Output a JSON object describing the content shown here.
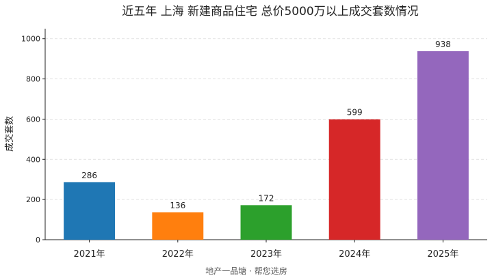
{
  "chart_data": {
    "type": "bar",
    "title": "近五年 上海 新建商品住宅 总价5000万以上成交套数情况",
    "xlabel": "",
    "ylabel": "成交套数",
    "categories": [
      "2021年",
      "2022年",
      "2023年",
      "2024年",
      "2025年"
    ],
    "values": [
      286,
      136,
      172,
      599,
      938
    ],
    "data_labels": [
      "286",
      "136",
      "172",
      "599",
      "938"
    ],
    "colors": [
      "#1f77b4",
      "#ff7f0e",
      "#2ca02c",
      "#d62728",
      "#9467bd"
    ],
    "ylim": [
      0,
      1050
    ],
    "yticks": [
      0,
      200,
      400,
      600,
      800,
      1000
    ],
    "ytick_labels": [
      "0",
      "200",
      "400",
      "600",
      "800",
      "1000"
    ],
    "grid": "horizontal-dashed",
    "legend": "none",
    "footer": "地产一品塘 · 帮您选房"
  }
}
